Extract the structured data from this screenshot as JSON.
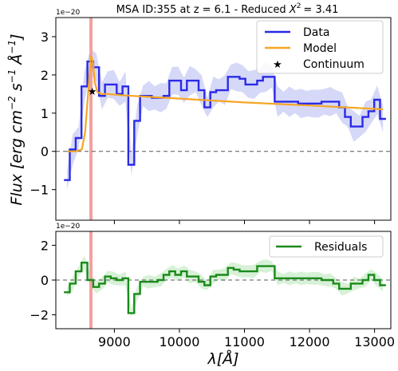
{
  "chart_data": [
    {
      "type": "line",
      "title": "MSA ID:355 at z = 6.1 - Reduced",
      "title_chi": "X",
      "title_chi_exp": "2",
      "title_value": "= 3.41",
      "ylabel": "Flux [erg cm",
      "ylabel_parts": [
        "Flux [erg cm",
        "−2",
        " s",
        "−1",
        " Å",
        "−1",
        "]"
      ],
      "y_offset": "1e−20",
      "xlim": [
        8100,
        13250
      ],
      "ylim": [
        -1.8,
        3.5
      ],
      "yticks": [
        -1,
        0,
        1,
        2,
        3
      ],
      "xticks": [
        9000,
        10000,
        11000,
        12000,
        13000
      ],
      "vline_x": 8640,
      "vline_color": "#f4a0a0",
      "zero_line": true,
      "legend_position": "top-right",
      "legend": [
        "Data",
        "Model",
        "Continuum"
      ],
      "series": [
        {
          "name": "Data",
          "color": "#2a2ae6",
          "drawstyle": "steps-mid",
          "x": [
            8270,
            8360,
            8450,
            8540,
            8630,
            8720,
            8810,
            8900,
            8990,
            9080,
            9170,
            9260,
            9350,
            9440,
            9530,
            9620,
            9710,
            9800,
            9890,
            9980,
            10070,
            10160,
            10250,
            10340,
            10430,
            10520,
            10610,
            10700,
            10790,
            10880,
            10970,
            11060,
            11150,
            11240,
            11330,
            11420,
            11510,
            11600,
            11690,
            11780,
            11870,
            11960,
            12050,
            12140,
            12230,
            12320,
            12410,
            12500,
            12590,
            12680,
            12770,
            12860,
            12950,
            13040,
            13130
          ],
          "y": [
            -0.75,
            0.05,
            0.35,
            1.7,
            2.35,
            2.2,
            1.45,
            1.75,
            1.75,
            1.5,
            1.7,
            -0.35,
            0.8,
            1.45,
            1.45,
            1.4,
            1.4,
            1.45,
            1.85,
            1.85,
            1.6,
            1.85,
            1.85,
            1.6,
            1.15,
            1.55,
            1.6,
            1.6,
            1.95,
            1.95,
            1.9,
            1.75,
            1.75,
            1.85,
            1.95,
            1.95,
            1.3,
            1.3,
            1.3,
            1.3,
            1.25,
            1.25,
            1.25,
            1.25,
            1.3,
            1.3,
            1.3,
            1.15,
            0.9,
            0.65,
            0.65,
            0.9,
            1.05,
            1.35,
            0.85
          ]
        },
        {
          "name": "Model",
          "color": "#f5a623",
          "x": [
            8270,
            8400,
            8500,
            8550,
            8600,
            8640,
            8670,
            8700,
            8740,
            8800,
            8900,
            9100,
            10000,
            11000,
            12000,
            13130
          ],
          "y": [
            0.0,
            0.0,
            0.05,
            0.5,
            1.6,
            2.5,
            2.35,
            1.8,
            1.55,
            1.5,
            1.5,
            1.47,
            1.38,
            1.28,
            1.2,
            1.1
          ]
        },
        {
          "name": "Continuum",
          "color": "#000000",
          "marker": "star",
          "x": [
            8660
          ],
          "y": [
            1.58
          ]
        }
      ]
    },
    {
      "type": "line",
      "xlabel": "λ[Å]",
      "y_offset": "1e−20",
      "xlim": [
        8100,
        13250
      ],
      "ylim": [
        -2.8,
        2.8
      ],
      "yticks": [
        -2,
        0,
        2
      ],
      "xticks": [
        9000,
        10000,
        11000,
        12000,
        13000
      ],
      "vline_x": 8640,
      "vline_color": "#f4a0a0",
      "zero_line": true,
      "legend_position": "top-right",
      "legend": [
        "Residuals"
      ],
      "series": [
        {
          "name": "Residuals",
          "color": "#1a8a1a",
          "drawstyle": "steps-mid",
          "x": [
            8270,
            8360,
            8450,
            8540,
            8630,
            8720,
            8810,
            8900,
            8990,
            9080,
            9170,
            9260,
            9350,
            9440,
            9530,
            9620,
            9710,
            9800,
            9890,
            9980,
            10070,
            10160,
            10250,
            10340,
            10430,
            10520,
            10610,
            10700,
            10790,
            10880,
            10970,
            11060,
            11150,
            11240,
            11330,
            11420,
            11510,
            11600,
            11690,
            11780,
            11870,
            11960,
            12050,
            12140,
            12230,
            12320,
            12410,
            12500,
            12590,
            12680,
            12770,
            12860,
            12950,
            13040,
            13130
          ],
          "y": [
            -0.7,
            -0.2,
            0.5,
            1.0,
            0.0,
            -0.4,
            -0.2,
            0.2,
            0.1,
            0.0,
            0.1,
            -1.9,
            -0.8,
            -0.1,
            -0.1,
            -0.1,
            0.0,
            0.3,
            0.5,
            0.3,
            0.5,
            0.2,
            0.2,
            -0.1,
            -0.3,
            0.2,
            0.3,
            0.3,
            0.7,
            0.6,
            0.5,
            0.5,
            0.5,
            0.8,
            0.8,
            0.8,
            0.1,
            0.1,
            0.1,
            0.1,
            0.1,
            0.1,
            0.1,
            0.1,
            0.0,
            0.0,
            -0.2,
            -0.5,
            -0.5,
            -0.2,
            -0.2,
            0.0,
            0.3,
            0.0,
            -0.3
          ]
        }
      ]
    }
  ]
}
